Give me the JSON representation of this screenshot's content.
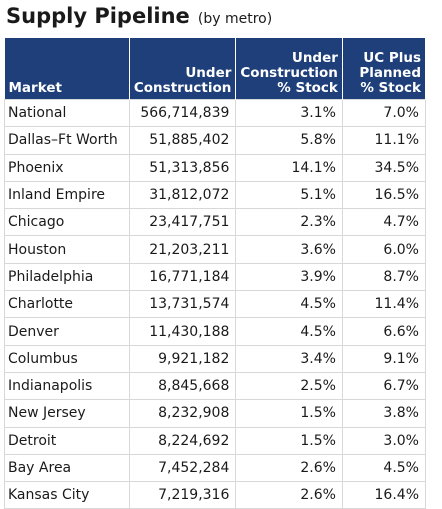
{
  "header": {
    "title": "Supply Pipeline",
    "subtitle": "(by metro)"
  },
  "table": {
    "columns": [
      [
        "Market"
      ],
      [
        "Under",
        "Construction"
      ],
      [
        "Under",
        "Construction",
        "% Stock"
      ],
      [
        "UC Plus",
        "Planned",
        "% Stock"
      ]
    ],
    "rows": [
      [
        "National",
        "566,714,839",
        "3.1%",
        "7.0%"
      ],
      [
        "Dallas–Ft Worth",
        "51,885,402",
        "5.8%",
        "11.1%"
      ],
      [
        "Phoenix",
        "51,313,856",
        "14.1%",
        "34.5%"
      ],
      [
        "Inland Empire",
        "31,812,072",
        "5.1%",
        "16.5%"
      ],
      [
        "Chicago",
        "23,417,751",
        "2.3%",
        "4.7%"
      ],
      [
        "Houston",
        "21,203,211",
        "3.6%",
        "6.0%"
      ],
      [
        "Philadelphia",
        "16,771,184",
        "3.9%",
        "8.7%"
      ],
      [
        "Charlotte",
        "13,731,574",
        "4.5%",
        "11.4%"
      ],
      [
        "Denver",
        "11,430,188",
        "4.5%",
        "6.6%"
      ],
      [
        "Columbus",
        "9,921,182",
        "3.4%",
        "9.1%"
      ],
      [
        "Indianapolis",
        "8,845,668",
        "2.5%",
        "6.7%"
      ],
      [
        "New Jersey",
        "8,232,908",
        "1.5%",
        "3.8%"
      ],
      [
        "Detroit",
        "8,224,692",
        "1.5%",
        "3.0%"
      ],
      [
        "Bay Area",
        "7,452,284",
        "2.6%",
        "4.5%"
      ],
      [
        "Kansas City",
        "7,219,316",
        "2.6%",
        "16.4%"
      ]
    ]
  }
}
